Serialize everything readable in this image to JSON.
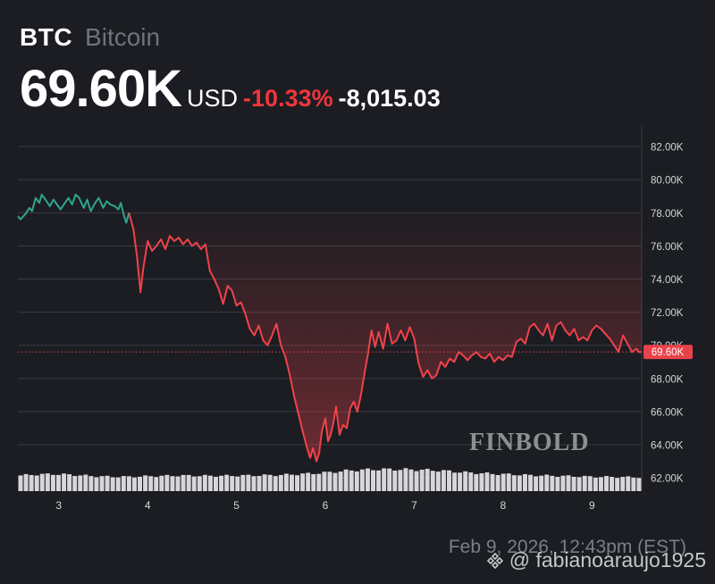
{
  "header": {
    "symbol": "BTC",
    "name": "Bitcoin",
    "price": "69.60K",
    "currency": "USD",
    "change_pct": "-10.33%",
    "change_abs": "-8,015.03"
  },
  "timestamp": "Feb 9, 2026, 12:43pm (EST)",
  "watermark": "FINBOLD",
  "credit": "@ fabianoaraujo1925",
  "colors": {
    "background": "#1b1d22",
    "up_line": "#2fa58f",
    "down_line": "#f0424a",
    "current_price_badge": "#e8424a",
    "volume": "#d7d7d9",
    "grid": "#3a3c42"
  },
  "chart_data": {
    "type": "line",
    "title": "",
    "xlabel": "",
    "ylabel": "",
    "x_ticks": [
      "3",
      "4",
      "5",
      "6",
      "7",
      "8",
      "9"
    ],
    "x_tick_values": [
      3,
      4,
      5,
      6,
      7,
      8,
      9
    ],
    "xlim": [
      2.54,
      9.56
    ],
    "y_ticks": [
      "62.00K",
      "64.00K",
      "66.00K",
      "68.00K",
      "70.00K",
      "72.00K",
      "74.00K",
      "76.00K",
      "78.00K",
      "80.00K",
      "82.00K"
    ],
    "ylim": [
      61.2,
      83.3
    ],
    "grid": true,
    "current_price_label": "69.60K",
    "current_price": 69.6,
    "series": [
      {
        "color": "#2fa58f",
        "x": [
          2.54,
          2.57,
          2.62,
          2.67,
          2.7,
          2.74,
          2.78,
          2.81,
          2.85,
          2.9,
          2.94,
          2.98,
          3.02,
          3.07,
          3.11,
          3.15,
          3.19,
          3.23,
          3.28,
          3.32,
          3.36,
          3.41,
          3.45,
          3.5,
          3.54,
          3.58,
          3.63,
          3.67,
          3.7,
          3.73,
          3.76,
          3.79
        ],
        "values": [
          77.8,
          77.6,
          77.9,
          78.3,
          78.1,
          78.9,
          78.6,
          79.1,
          78.8,
          78.4,
          78.8,
          78.5,
          78.2,
          78.6,
          78.9,
          78.5,
          79.1,
          78.9,
          78.3,
          78.8,
          78.1,
          78.6,
          78.9,
          78.3,
          78.7,
          78.5,
          78.4,
          78.2,
          78.6,
          77.9,
          77.4,
          78.0
        ]
      },
      {
        "color": "#f0424a",
        "x": [
          3.79,
          3.84,
          3.88,
          3.92,
          3.95,
          4.0,
          4.05,
          4.1,
          4.15,
          4.2,
          4.25,
          4.3,
          4.35,
          4.4,
          4.45,
          4.5,
          4.55,
          4.6,
          4.65,
          4.7,
          4.75,
          4.8,
          4.85,
          4.9,
          4.95,
          5.0,
          5.05,
          5.1,
          5.15,
          5.2,
          5.25,
          5.3,
          5.35,
          5.4,
          5.45,
          5.5,
          5.55,
          5.6,
          5.65,
          5.7,
          5.75,
          5.8,
          5.83,
          5.86,
          5.9,
          5.93,
          5.96,
          6.0,
          6.03,
          6.06,
          6.09,
          6.12,
          6.16,
          6.2,
          6.24,
          6.28,
          6.32,
          6.36,
          6.4,
          6.44,
          6.48,
          6.52,
          6.56,
          6.6,
          6.65,
          6.7,
          6.75,
          6.8,
          6.85,
          6.9,
          6.95,
          7.0,
          7.05,
          7.1,
          7.15,
          7.2,
          7.25,
          7.3,
          7.35,
          7.4,
          7.45,
          7.5,
          7.55,
          7.6,
          7.65,
          7.7,
          7.75,
          7.8,
          7.85,
          7.9,
          7.95,
          8.0,
          8.05,
          8.1,
          8.15,
          8.2,
          8.25,
          8.3,
          8.35,
          8.4,
          8.45,
          8.5,
          8.55,
          8.6,
          8.65,
          8.7,
          8.75,
          8.8,
          8.85,
          8.9,
          8.95,
          9.0,
          9.05,
          9.1,
          9.15,
          9.2,
          9.25,
          9.3,
          9.35,
          9.4,
          9.45,
          9.5,
          9.53,
          9.56
        ],
        "values": [
          78.0,
          77.0,
          75.4,
          73.2,
          74.6,
          76.3,
          75.7,
          76.0,
          76.4,
          75.8,
          76.6,
          76.3,
          76.5,
          76.1,
          76.4,
          76.0,
          76.2,
          75.8,
          76.1,
          74.5,
          74.0,
          73.4,
          72.5,
          73.6,
          73.3,
          72.4,
          72.6,
          71.9,
          71.0,
          70.6,
          71.2,
          70.3,
          70.0,
          70.6,
          71.3,
          70.0,
          69.3,
          68.2,
          66.9,
          65.8,
          64.7,
          63.7,
          63.2,
          63.8,
          63.0,
          63.5,
          64.8,
          65.6,
          64.2,
          64.6,
          65.3,
          66.3,
          64.6,
          65.2,
          65.0,
          66.2,
          66.6,
          66.0,
          67.0,
          68.3,
          69.5,
          70.9,
          69.9,
          70.8,
          69.8,
          71.3,
          70.1,
          70.3,
          70.9,
          70.3,
          71.1,
          70.4,
          68.9,
          68.1,
          68.5,
          68.0,
          68.2,
          69.0,
          68.7,
          69.2,
          69.0,
          69.6,
          69.4,
          69.1,
          69.4,
          69.6,
          69.3,
          69.2,
          69.5,
          69.0,
          69.3,
          69.1,
          69.4,
          69.3,
          70.2,
          70.4,
          70.1,
          71.1,
          71.3,
          70.9,
          70.6,
          71.3,
          70.3,
          71.2,
          71.4,
          70.9,
          70.6,
          71.0,
          70.3,
          70.5,
          70.3,
          70.9,
          71.2,
          71.0,
          70.7,
          70.4,
          70.0,
          69.6,
          70.6,
          70.1,
          69.6,
          69.8,
          69.6,
          69.6
        ]
      }
    ],
    "volume_levels": [
      0.85,
      0.9,
      0.92,
      0.9,
      0.85,
      0.8,
      0.78,
      0.78,
      0.8,
      0.82,
      0.84,
      0.84,
      0.83,
      0.83,
      0.84,
      0.85,
      0.86,
      0.88,
      0.92,
      0.96,
      1.02,
      1.1,
      1.15,
      1.18,
      1.18,
      1.17,
      1.15,
      1.12,
      1.06,
      1.0,
      0.96,
      0.92,
      0.9,
      0.86,
      0.84,
      0.82,
      0.8,
      0.78,
      0.77,
      0.76,
      0.75
    ]
  }
}
